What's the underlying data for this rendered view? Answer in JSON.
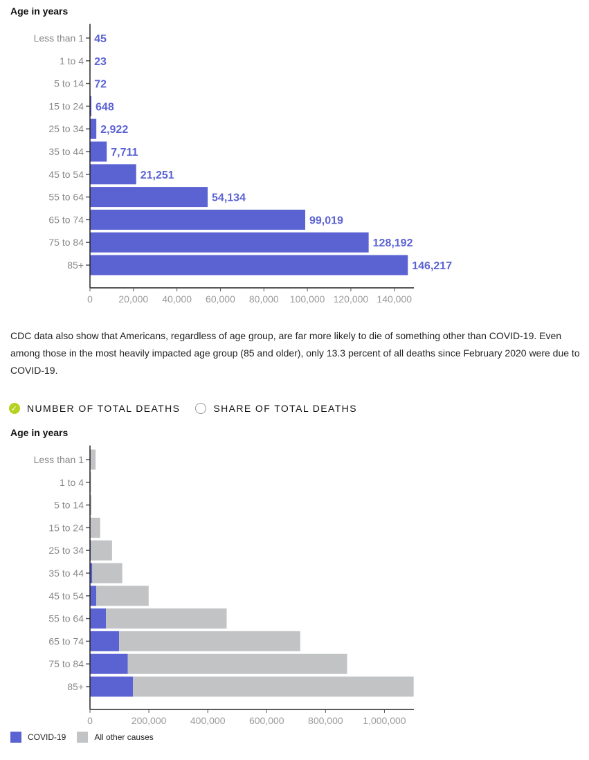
{
  "chart_data": [
    {
      "type": "bar",
      "orientation": "horizontal",
      "ylabel": "Age in years",
      "categories": [
        "Less than 1",
        "1 to 4",
        "5 to 14",
        "15 to 24",
        "25 to 34",
        "35 to 44",
        "45 to 54",
        "55 to 64",
        "65 to 74",
        "75 to 84",
        "85+"
      ],
      "values": [
        45,
        23,
        72,
        648,
        2922,
        7711,
        21251,
        54134,
        99019,
        128192,
        146217
      ],
      "value_labels": [
        "45",
        "23",
        "72",
        "648",
        "2,922",
        "7,711",
        "21,251",
        "54,134",
        "99,019",
        "128,192",
        "146,217"
      ],
      "xlim": [
        0,
        149000
      ],
      "xticks": [
        0,
        20000,
        40000,
        60000,
        80000,
        100000,
        120000,
        140000
      ],
      "xtick_labels": [
        "0",
        "20,000",
        "40,000",
        "60,000",
        "80,000",
        "100,000",
        "120,000",
        "140,000"
      ],
      "color": "#5b63d3"
    },
    {
      "type": "bar",
      "orientation": "horizontal",
      "stacked": true,
      "ylabel": "Age in years",
      "categories": [
        "Less than 1",
        "1 to 4",
        "5 to 14",
        "15 to 24",
        "25 to 34",
        "35 to 44",
        "45 to 54",
        "55 to 64",
        "65 to 74",
        "75 to 84",
        "85+"
      ],
      "series": [
        {
          "name": "COVID-19",
          "color": "#5b63d3",
          "values": [
            45,
            23,
            72,
            648,
            2922,
            7711,
            21251,
            54134,
            99019,
            128192,
            146217
          ]
        },
        {
          "name": "All other causes",
          "color": "#c2c3c4",
          "values": [
            19000,
            3500,
            5000,
            34000,
            72000,
            102000,
            178000,
            410000,
            615000,
            745000,
            953000
          ]
        }
      ],
      "xlim": [
        0,
        1100000
      ],
      "xticks": [
        0,
        200000,
        400000,
        600000,
        800000,
        1000000
      ],
      "xtick_labels": [
        "0",
        "200,000",
        "400,000",
        "600,000",
        "800,000",
        "1,000,000"
      ],
      "legend": "bottom-left"
    }
  ],
  "paragraph": "CDC data also show that Americans, regardless of age group, are far more likely to die of something other than COVID-19. Even among those in the most heavily impacted age group (85 and older), only 13.3 percent of all deaths since February 2020 were due to COVID-19.",
  "toggle": {
    "options": [
      "NUMBER OF TOTAL DEATHS",
      "SHARE OF TOTAL DEATHS"
    ],
    "selected": 0
  }
}
